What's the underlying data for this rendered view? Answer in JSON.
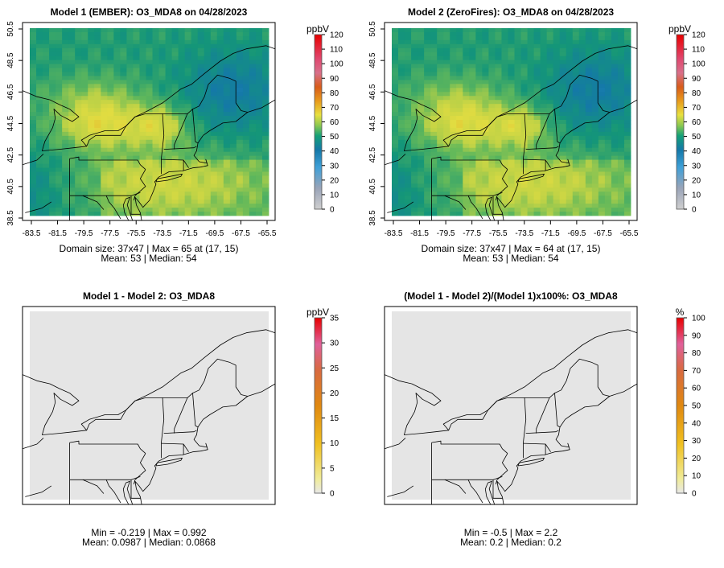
{
  "chart_data": [
    {
      "type": "heatmap",
      "title": "Model 1 (EMBER): O3_MDA8 on 04/28/2023",
      "x_ticks": [
        "-83.5",
        "-81.5",
        "-79.5",
        "-77.5",
        "-75.5",
        "-73.5",
        "-71.5",
        "-69.5",
        "-67.5",
        "-65.5"
      ],
      "y_ticks": [
        "38.5",
        "40.5",
        "42.5",
        "44.5",
        "46.5",
        "48.5",
        "50.5"
      ],
      "xlim": [
        -84.1,
        -64.8
      ],
      "ylim": [
        38.1,
        50.9
      ],
      "colorbar": {
        "unit": "ppbV",
        "min": 0,
        "max": 120,
        "ticks": [
          "0",
          "10",
          "20",
          "30",
          "40",
          "50",
          "60",
          "70",
          "80",
          "90",
          "100",
          "110",
          "120"
        ],
        "palette": "ozone"
      },
      "field": {
        "base": 49,
        "hot_spots": [
          [
            -78.0,
            44.3,
            13,
            3.5,
            1.6
          ],
          [
            -73.5,
            44.2,
            10,
            2.0,
            1.3
          ],
          [
            -73.0,
            40.5,
            8,
            7.0,
            2.2
          ],
          [
            -78.8,
            46.2,
            5,
            4.0,
            1.5
          ]
        ],
        "cool_spots": [
          [
            -68.0,
            46.5,
            8,
            3.5,
            2.5
          ],
          [
            -83.5,
            40.0,
            4,
            2.5,
            2.5
          ]
        ]
      },
      "stats_line1": "Domain size: 37x47 | Max = 65 at (17, 15)",
      "stats_line2": "Mean: 53 |  Median: 54"
    },
    {
      "type": "heatmap",
      "title": "Model 2 (ZeroFires): O3_MDA8 on 04/28/2023",
      "x_ticks": [
        "-83.5",
        "-81.5",
        "-79.5",
        "-77.5",
        "-75.5",
        "-73.5",
        "-71.5",
        "-69.5",
        "-67.5",
        "-65.5"
      ],
      "y_ticks": [
        "38.5",
        "40.5",
        "42.5",
        "44.5",
        "46.5",
        "48.5",
        "50.5"
      ],
      "xlim": [
        -84.1,
        -64.8
      ],
      "ylim": [
        38.1,
        50.9
      ],
      "colorbar": {
        "unit": "ppbV",
        "min": 0,
        "max": 120,
        "ticks": [
          "0",
          "10",
          "20",
          "30",
          "40",
          "50",
          "60",
          "70",
          "80",
          "90",
          "100",
          "110",
          "120"
        ],
        "palette": "ozone"
      },
      "field": {
        "base": 49,
        "hot_spots": [
          [
            -78.0,
            44.3,
            12.5,
            3.5,
            1.6
          ],
          [
            -73.5,
            44.2,
            9.5,
            2.0,
            1.3
          ],
          [
            -73.0,
            40.5,
            8,
            7.0,
            2.2
          ],
          [
            -78.8,
            46.2,
            5,
            4.0,
            1.5
          ]
        ],
        "cool_spots": [
          [
            -68.0,
            46.5,
            8,
            3.5,
            2.5
          ],
          [
            -83.5,
            40.0,
            4,
            2.5,
            2.5
          ]
        ]
      },
      "stats_line1": "Domain size: 37x47 | Max = 64 at (17, 15)",
      "stats_line2": "Mean: 53 |  Median: 54"
    },
    {
      "type": "heatmap",
      "title": "Model 1 - Model 2: O3_MDA8",
      "x_ticks": [],
      "y_ticks": [],
      "xlim": [
        -84.1,
        -64.8
      ],
      "ylim": [
        38.1,
        50.9
      ],
      "colorbar": {
        "unit": "ppbV",
        "min": 0,
        "max": 35,
        "ticks": [
          "0",
          "5",
          "10",
          "15",
          "20",
          "25",
          "30",
          "35"
        ],
        "palette": "diff"
      },
      "field": {
        "uniform": "#e5e5e5"
      },
      "stats_line1": "Min = -0.219 | Max = 0.992",
      "stats_line2": "Mean: 0.0987 |  Median: 0.0868"
    },
    {
      "type": "heatmap",
      "title": "(Model 1 - Model 2)/(Model 1)x100%: O3_MDA8",
      "x_ticks": [],
      "y_ticks": [],
      "xlim": [
        -84.1,
        -64.8
      ],
      "ylim": [
        38.1,
        50.9
      ],
      "colorbar": {
        "unit": "%",
        "min": 0,
        "max": 100,
        "ticks": [
          "0",
          "10",
          "20",
          "30",
          "40",
          "50",
          "60",
          "70",
          "80",
          "90",
          "100"
        ],
        "palette": "diff"
      },
      "field": {
        "uniform": "#e5e5e5"
      },
      "stats_line1": "Min = -0.5 | Max = 2.2",
      "stats_line2": "Mean: 0.2 |  Median: 0.2"
    }
  ]
}
